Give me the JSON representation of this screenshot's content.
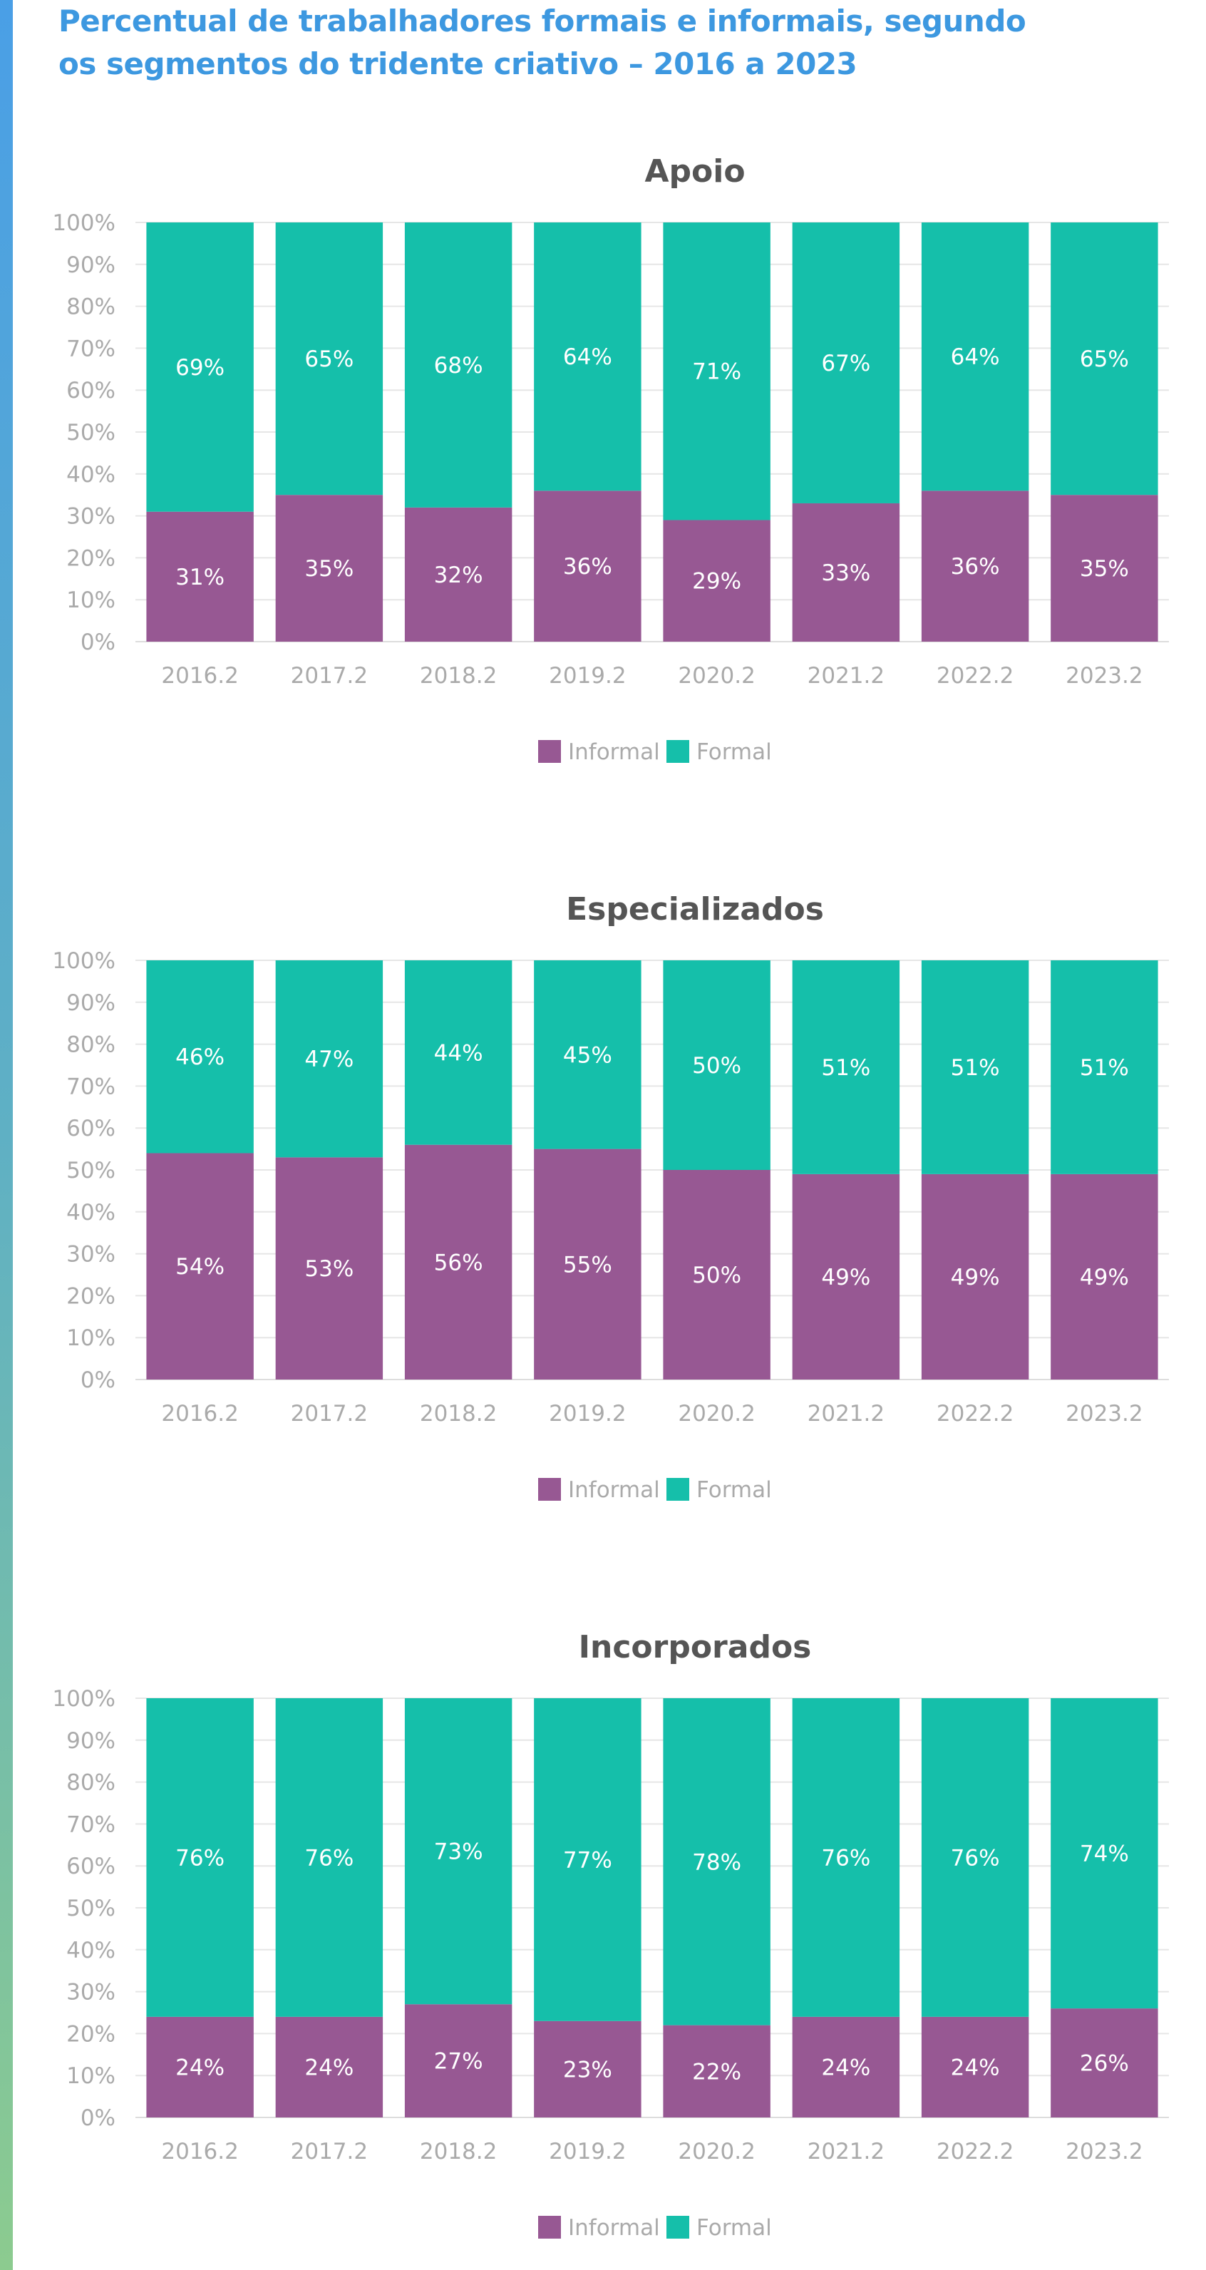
{
  "title_lines": [
    "Percentual de trabalhadores formais e informais, segundo",
    "os segmentos do tridente criativo – 2016 a 2023"
  ],
  "colors": {
    "informal": "#975893",
    "formal": "#15bfaa",
    "title": "#3d98e0",
    "accent_bar": "#4a9fe6"
  },
  "legend": {
    "informal": "Informal",
    "formal": "Formal"
  },
  "chart_data": [
    {
      "type": "bar",
      "stacked": true,
      "title": "Apoio",
      "categories": [
        "2016.2",
        "2017.2",
        "2018.2",
        "2019.2",
        "2020.2",
        "2021.2",
        "2022.2",
        "2023.2"
      ],
      "series": [
        {
          "name": "Informal",
          "values": [
            31,
            35,
            32,
            36,
            29,
            33,
            36,
            35
          ],
          "labels": [
            "31%",
            "35%",
            "32%",
            "36%",
            "29%",
            "33%",
            "36%",
            "35%"
          ]
        },
        {
          "name": "Formal",
          "values": [
            69,
            65,
            68,
            64,
            71,
            67,
            64,
            65
          ],
          "labels": [
            "69%",
            "65%",
            "68%",
            "64%",
            "71%",
            "67%",
            "64%",
            "65%"
          ]
        }
      ],
      "yticks": [
        "0%",
        "10%",
        "20%",
        "30%",
        "40%",
        "50%",
        "60%",
        "70%",
        "80%",
        "90%",
        "100%"
      ],
      "ylim": [
        0,
        100
      ],
      "grid": true,
      "legend_position": "bottom-center"
    },
    {
      "type": "bar",
      "stacked": true,
      "title": "Especializados",
      "categories": [
        "2016.2",
        "2017.2",
        "2018.2",
        "2019.2",
        "2020.2",
        "2021.2",
        "2022.2",
        "2023.2"
      ],
      "series": [
        {
          "name": "Informal",
          "values": [
            54,
            53,
            56,
            55,
            50,
            49,
            49,
            49
          ],
          "labels": [
            "54%",
            "53%",
            "56%",
            "55%",
            "50%",
            "49%",
            "49%",
            "49%"
          ]
        },
        {
          "name": "Formal",
          "values": [
            46,
            47,
            44,
            45,
            50,
            51,
            51,
            51
          ],
          "labels": [
            "46%",
            "47%",
            "44%",
            "45%",
            "50%",
            "51%",
            "51%",
            "51%"
          ]
        }
      ],
      "yticks": [
        "0%",
        "10%",
        "20%",
        "30%",
        "40%",
        "50%",
        "60%",
        "70%",
        "80%",
        "90%",
        "100%"
      ],
      "ylim": [
        0,
        100
      ],
      "grid": true,
      "legend_position": "bottom-center"
    },
    {
      "type": "bar",
      "stacked": true,
      "title": "Incorporados",
      "categories": [
        "2016.2",
        "2017.2",
        "2018.2",
        "2019.2",
        "2020.2",
        "2021.2",
        "2022.2",
        "2023.2"
      ],
      "series": [
        {
          "name": "Informal",
          "values": [
            24,
            24,
            27,
            23,
            22,
            24,
            24,
            26
          ],
          "labels": [
            "24%",
            "24%",
            "27%",
            "23%",
            "22%",
            "24%",
            "24%",
            "26%"
          ]
        },
        {
          "name": "Formal",
          "values": [
            76,
            76,
            73,
            77,
            78,
            76,
            76,
            74
          ],
          "labels": [
            "76%",
            "76%",
            "73%",
            "77%",
            "78%",
            "76%",
            "76%",
            "74%"
          ]
        }
      ],
      "yticks": [
        "0%",
        "10%",
        "20%",
        "30%",
        "40%",
        "50%",
        "60%",
        "70%",
        "80%",
        "90%",
        "100%"
      ],
      "ylim": [
        0,
        100
      ],
      "grid": true,
      "legend_position": "bottom-center"
    }
  ]
}
